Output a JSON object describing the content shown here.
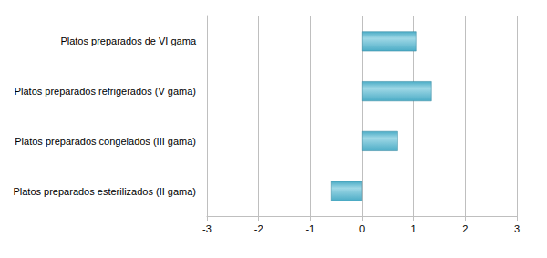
{
  "chart_data": {
    "type": "bar",
    "orientation": "horizontal",
    "categories": [
      "Platos preparados esterilizados (II gama)",
      "Platos preparados congelados (III gama)",
      "Platos preparados refrigerados (V gama)",
      "Platos preparados de VI gama"
    ],
    "values": [
      -0.6,
      0.7,
      1.35,
      1.05
    ],
    "color": "#4bacc6",
    "xlim": [
      -3,
      3
    ],
    "xticks": [
      -3,
      -2,
      -1,
      0,
      1,
      2,
      3
    ],
    "grid": true
  }
}
